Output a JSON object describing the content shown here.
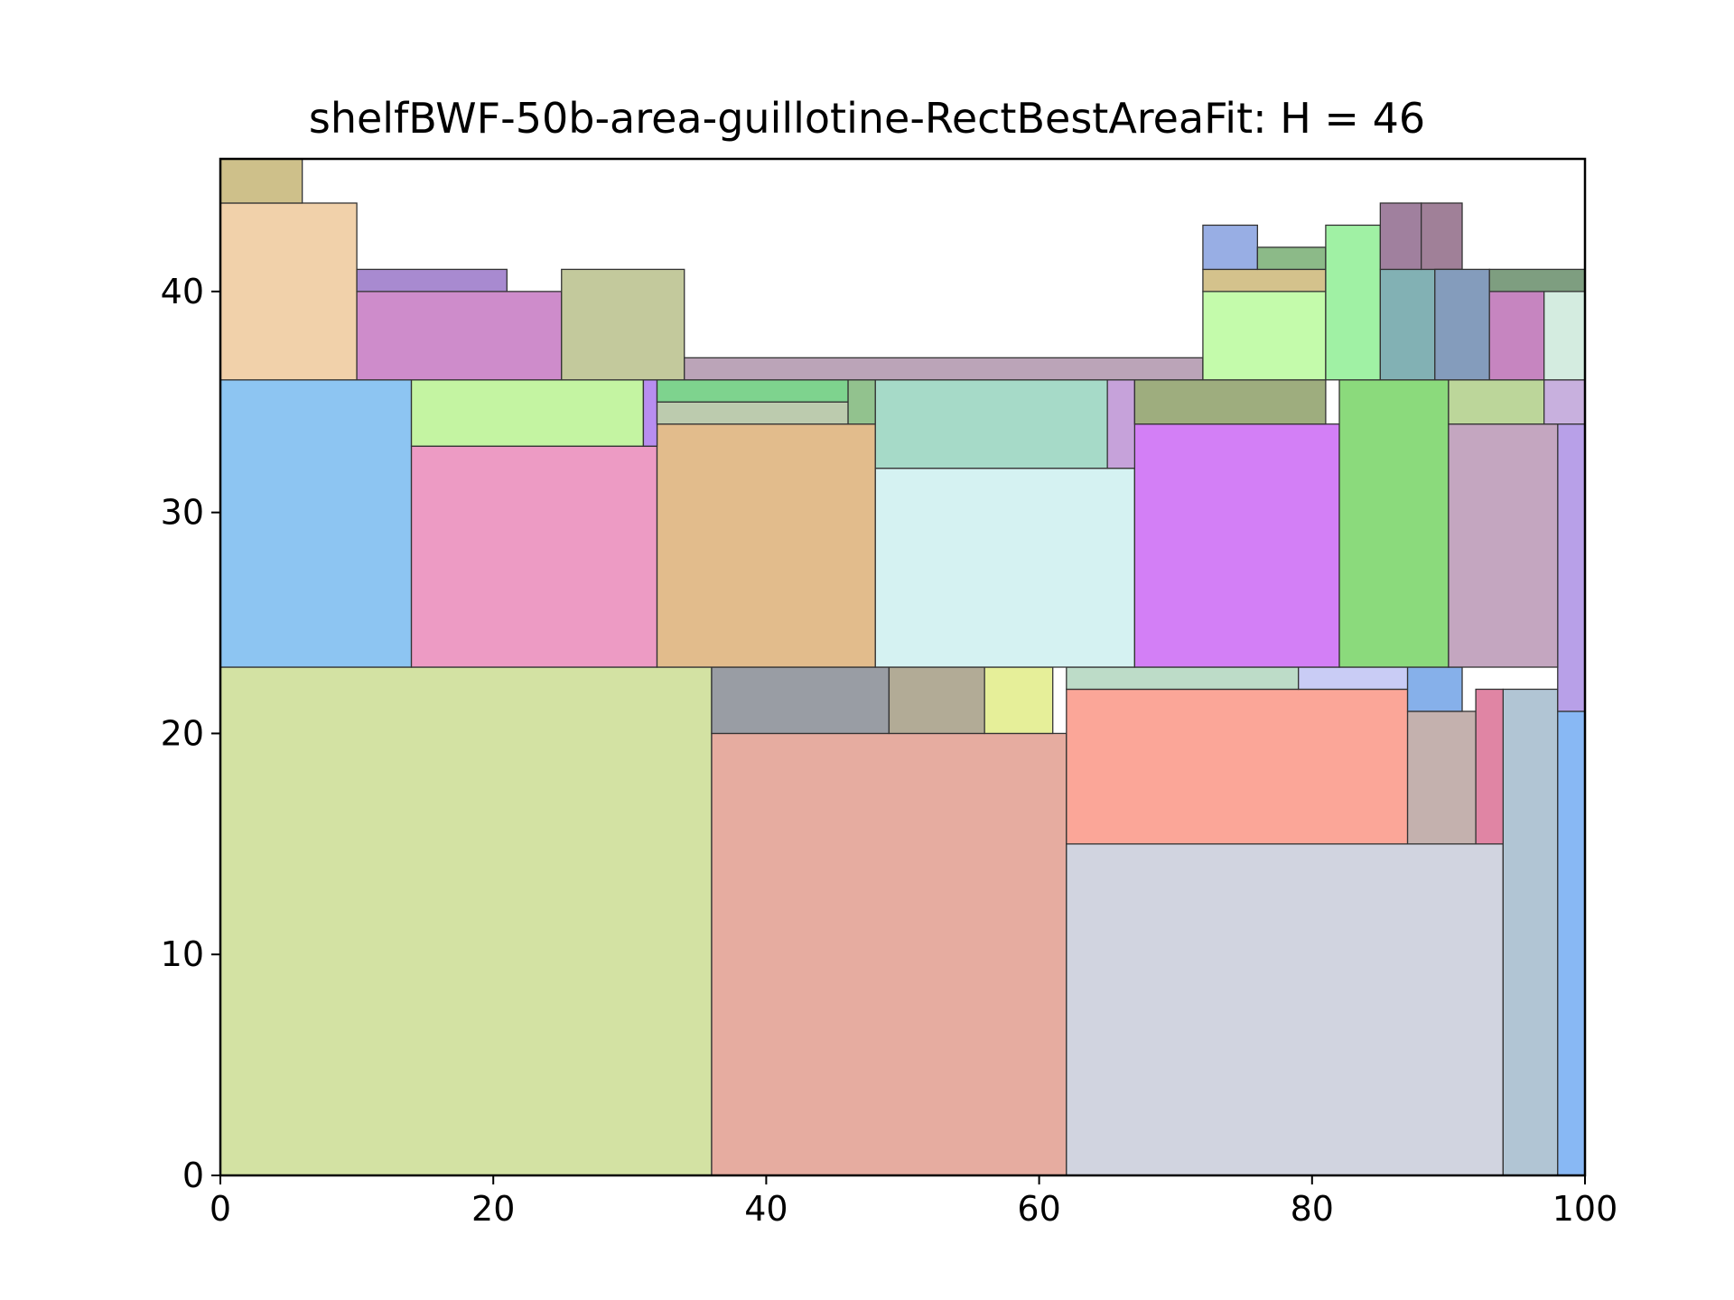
{
  "chart_data": {
    "type": "rectangle-packing",
    "title": "shelfBWF-50b-area-guillotine-RectBestAreaFit: H = 46",
    "xlim": [
      0,
      100
    ],
    "ylim": [
      0,
      46
    ],
    "xticks": [
      0,
      20,
      40,
      60,
      80,
      100
    ],
    "yticks": [
      0,
      10,
      20,
      30,
      40
    ],
    "grid": false,
    "rects": [
      {
        "x": 0,
        "y": 0,
        "w": 36,
        "h": 23,
        "color": "#d3e2a3"
      },
      {
        "x": 36,
        "y": 0,
        "w": 26,
        "h": 20,
        "color": "#e6aca0"
      },
      {
        "x": 62,
        "y": 0,
        "w": 32,
        "h": 15,
        "color": "#d1d4e0"
      },
      {
        "x": 94,
        "y": 0,
        "w": 4,
        "h": 22,
        "color": "#b1c5d4"
      },
      {
        "x": 98,
        "y": 0,
        "w": 2,
        "h": 21,
        "color": "#88b8f4"
      },
      {
        "x": 62,
        "y": 15,
        "w": 25,
        "h": 7,
        "color": "#fba698"
      },
      {
        "x": 87,
        "y": 15,
        "w": 5,
        "h": 6,
        "color": "#c4b1ae"
      },
      {
        "x": 92,
        "y": 15,
        "w": 2,
        "h": 7,
        "color": "#e085a4"
      },
      {
        "x": 36,
        "y": 20,
        "w": 13,
        "h": 3,
        "color": "#999da4"
      },
      {
        "x": 49,
        "y": 20,
        "w": 7,
        "h": 3,
        "color": "#b2ab96"
      },
      {
        "x": 56,
        "y": 20,
        "w": 5,
        "h": 3,
        "color": "#e6ef99"
      },
      {
        "x": 62,
        "y": 22,
        "w": 17,
        "h": 1,
        "color": "#bddcc8"
      },
      {
        "x": 79,
        "y": 22,
        "w": 8,
        "h": 1,
        "color": "#c9ccf5"
      },
      {
        "x": 87,
        "y": 21,
        "w": 4,
        "h": 2,
        "color": "#86b0ea"
      },
      {
        "x": 98,
        "y": 21,
        "w": 2,
        "h": 13,
        "color": "#b8a0e8"
      },
      {
        "x": 0,
        "y": 23,
        "w": 14,
        "h": 13,
        "color": "#8dc5f2"
      },
      {
        "x": 14,
        "y": 23,
        "w": 18,
        "h": 10,
        "color": "#ed9bc4"
      },
      {
        "x": 32,
        "y": 23,
        "w": 16,
        "h": 11,
        "color": "#e2bc8c"
      },
      {
        "x": 48,
        "y": 23,
        "w": 19,
        "h": 9,
        "color": "#d5f2f2"
      },
      {
        "x": 67,
        "y": 23,
        "w": 15,
        "h": 11,
        "color": "#d37ff6"
      },
      {
        "x": 82,
        "y": 23,
        "w": 8,
        "h": 13,
        "color": "#8bda7c"
      },
      {
        "x": 90,
        "y": 23,
        "w": 8,
        "h": 11,
        "color": "#c4a6c0"
      },
      {
        "x": 14,
        "y": 33,
        "w": 17,
        "h": 3,
        "color": "#c4f4a2"
      },
      {
        "x": 31,
        "y": 33,
        "w": 1,
        "h": 3,
        "color": "#b88ef0"
      },
      {
        "x": 32,
        "y": 34,
        "w": 14,
        "h": 1,
        "color": "#bccbae"
      },
      {
        "x": 32,
        "y": 35,
        "w": 14,
        "h": 1,
        "color": "#7ed38e"
      },
      {
        "x": 46,
        "y": 34,
        "w": 2,
        "h": 2,
        "color": "#92c28e"
      },
      {
        "x": 48,
        "y": 32,
        "w": 17,
        "h": 4,
        "color": "#a6dac8"
      },
      {
        "x": 65,
        "y": 32,
        "w": 2,
        "h": 4,
        "color": "#c6a2da"
      },
      {
        "x": 67,
        "y": 34,
        "w": 14,
        "h": 2,
        "color": "#9ead7e"
      },
      {
        "x": 90,
        "y": 34,
        "w": 7,
        "h": 2,
        "color": "#bcd69a"
      },
      {
        "x": 97,
        "y": 34,
        "w": 3,
        "h": 2,
        "color": "#c8b0de"
      },
      {
        "x": 0,
        "y": 36,
        "w": 10,
        "h": 8,
        "color": "#f1d1aa"
      },
      {
        "x": 0,
        "y": 44,
        "w": 6,
        "h": 2,
        "color": "#cec08a"
      },
      {
        "x": 10,
        "y": 36,
        "w": 15,
        "h": 4,
        "color": "#ce8ccb"
      },
      {
        "x": 10,
        "y": 40,
        "w": 11,
        "h": 1,
        "color": "#a88ad0"
      },
      {
        "x": 25,
        "y": 36,
        "w": 9,
        "h": 5,
        "color": "#c3c99c"
      },
      {
        "x": 34,
        "y": 36,
        "w": 38,
        "h": 1,
        "color": "#bba4b8"
      },
      {
        "x": 72,
        "y": 36,
        "w": 9,
        "h": 4,
        "color": "#c4fbab"
      },
      {
        "x": 72,
        "y": 40,
        "w": 9,
        "h": 1,
        "color": "#d4c28c"
      },
      {
        "x": 72,
        "y": 41,
        "w": 4,
        "h": 2,
        "color": "#98aee4"
      },
      {
        "x": 76,
        "y": 41,
        "w": 5,
        "h": 1,
        "color": "#8cba88"
      },
      {
        "x": 81,
        "y": 36,
        "w": 4,
        "h": 7,
        "color": "#a0f1a4"
      },
      {
        "x": 85,
        "y": 36,
        "w": 4,
        "h": 5,
        "color": "#82b1b4"
      },
      {
        "x": 85,
        "y": 41,
        "w": 3,
        "h": 3,
        "color": "#a0809e"
      },
      {
        "x": 88,
        "y": 41,
        "w": 3,
        "h": 3,
        "color": "#a08098"
      },
      {
        "x": 89,
        "y": 36,
        "w": 4,
        "h": 5,
        "color": "#849cbc"
      },
      {
        "x": 93,
        "y": 36,
        "w": 4,
        "h": 4,
        "color": "#c685c0"
      },
      {
        "x": 97,
        "y": 36,
        "w": 3,
        "h": 4,
        "color": "#d4ece0"
      },
      {
        "x": 93,
        "y": 40,
        "w": 7,
        "h": 1,
        "color": "#7e9e80"
      }
    ]
  }
}
